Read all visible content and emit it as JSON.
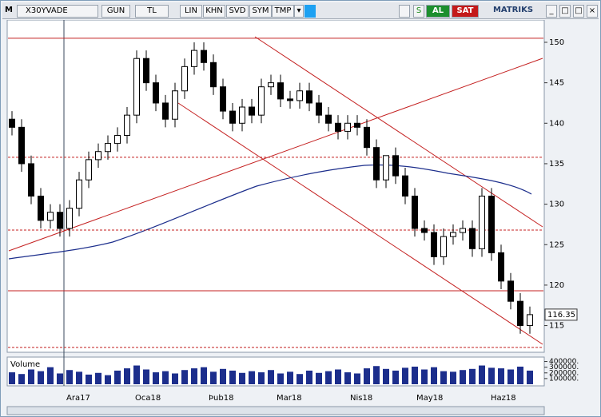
{
  "toolbar": {
    "logo": "M",
    "symbol": "X30YVADE",
    "buttons": [
      "GUN",
      "TL",
      "LIN",
      "KHN",
      "SVD",
      "SYM",
      "TMP"
    ],
    "buy": "AL",
    "sell": "SAT",
    "brand": "MATRIKS"
  },
  "chart_data": {
    "type": "candlestick",
    "opens": [
      140.5,
      139.5,
      135,
      131,
      128,
      129,
      127,
      129.5,
      133,
      135.5,
      136.5,
      137.5,
      138.5,
      141,
      148,
      145,
      142.5,
      140.5,
      144,
      147,
      149,
      147.5,
      144.5,
      141.5,
      140,
      142,
      141,
      144.5,
      145,
      143,
      142.8,
      144,
      142.5,
      141,
      140,
      139,
      140,
      139.5,
      137,
      133,
      136,
      133.5,
      131,
      127,
      126.5,
      123.5,
      126,
      126.5,
      127,
      124.5,
      131,
      124,
      120.5,
      118,
      115
    ],
    "highs": [
      141.5,
      140.5,
      136,
      132,
      130,
      130,
      130.5,
      134,
      136.5,
      137.5,
      138.5,
      139.5,
      142,
      149,
      149,
      146,
      143.5,
      145,
      148,
      150,
      150,
      148.5,
      145.5,
      142.5,
      143,
      143,
      145.5,
      146,
      146,
      144,
      145,
      145,
      143.5,
      142,
      141,
      141,
      141,
      140.5,
      138,
      136,
      137,
      134.5,
      132,
      128,
      127.5,
      127,
      127.5,
      128,
      128,
      132,
      132,
      125,
      121.5,
      119,
      117.35
    ],
    "lows": [
      138.5,
      134,
      130,
      127,
      127,
      126,
      126,
      128.5,
      132,
      134.5,
      135.5,
      136.5,
      137.5,
      140,
      144,
      141.5,
      139.5,
      139.5,
      143,
      146,
      146.5,
      143.5,
      140.5,
      139,
      139,
      140,
      140,
      143.5,
      142,
      141.8,
      141.8,
      141.5,
      140,
      139,
      138,
      138,
      138.5,
      136,
      132,
      132,
      132.5,
      130,
      126,
      125.5,
      122.5,
      122.5,
      125,
      125.5,
      123.5,
      123.5,
      123,
      119.5,
      117,
      114,
      114
    ],
    "closes": [
      139.5,
      135,
      131,
      128,
      129,
      127,
      129.5,
      133,
      135.5,
      136.5,
      137.5,
      138.5,
      141,
      148,
      145,
      142.5,
      140.5,
      144,
      147,
      149,
      147.5,
      144.5,
      141.5,
      140,
      142,
      141,
      144.5,
      145,
      143,
      142.8,
      144,
      142.5,
      141,
      140,
      139,
      140,
      139.5,
      137,
      133,
      136,
      133.5,
      131,
      127,
      126.5,
      123.5,
      126,
      126.5,
      127,
      124.5,
      131,
      124,
      120.5,
      118,
      115,
      116.35
    ],
    "volumes": [
      210000,
      180000,
      260000,
      230000,
      300000,
      190000,
      250000,
      220000,
      170000,
      200000,
      160000,
      240000,
      280000,
      330000,
      260000,
      210000,
      230000,
      190000,
      250000,
      280000,
      300000,
      220000,
      270000,
      240000,
      200000,
      230000,
      210000,
      250000,
      190000,
      220000,
      180000,
      240000,
      200000,
      230000,
      260000,
      210000,
      190000,
      280000,
      320000,
      270000,
      240000,
      290000,
      310000,
      260000,
      300000,
      230000,
      220000,
      250000,
      270000,
      330000,
      290000,
      280000,
      260000,
      310000,
      240000
    ],
    "ylim": [
      111.7,
      152.76
    ],
    "yticks": [
      115,
      120,
      125,
      130,
      135,
      140,
      145,
      150
    ],
    "volume_label": "Volume",
    "volume_ylim": [
      0,
      450000
    ],
    "volume_ticks": [
      {
        "value": 100000,
        "label": "100000."
      },
      {
        "value": 200000,
        "label": "200000."
      },
      {
        "value": 300000,
        "label": "300000."
      },
      {
        "value": 400000,
        "label": "400000."
      }
    ],
    "levels": [
      {
        "value": 150.5,
        "dashed": false
      },
      {
        "value": 135.8,
        "dashed": true
      },
      {
        "value": 126.8,
        "dashed": true
      },
      {
        "value": 119.3,
        "dashed": false
      },
      {
        "value": 112.3,
        "dashed": true
      }
    ],
    "months": [
      "Ara17",
      "Oca18",
      "Þub18",
      "Mar18",
      "Nis18",
      "May18",
      "Haz18"
    ],
    "up_color": "#ffffff",
    "down_color": "#000000",
    "level_color": "#c42020",
    "volume_color": "#1c2e8c"
  }
}
